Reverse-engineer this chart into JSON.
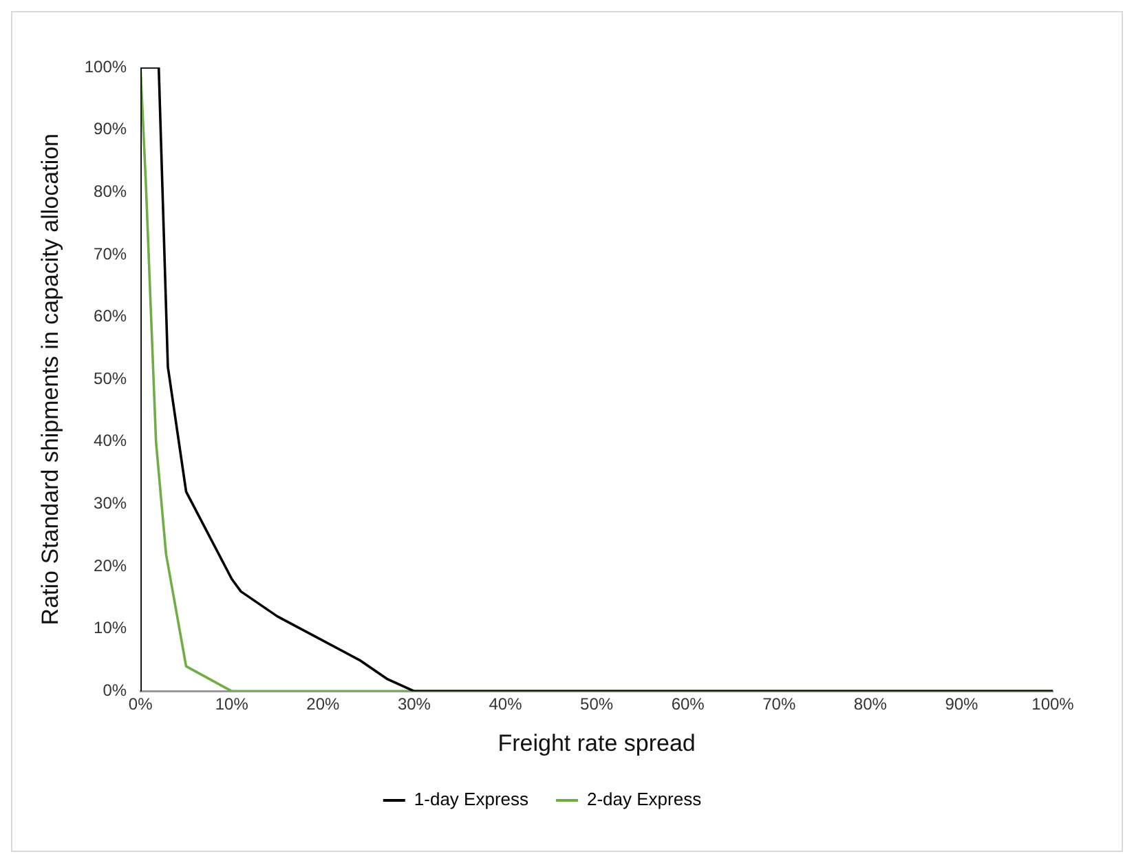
{
  "chart_data": {
    "type": "line",
    "xlabel": "Freight rate spread",
    "ylabel": "Ratio Standard shipments in capacity allocation",
    "xlim": [
      0,
      100
    ],
    "ylim": [
      0,
      100
    ],
    "xticks": [
      {
        "value": 0,
        "label": "0%"
      },
      {
        "value": 10,
        "label": "10%"
      },
      {
        "value": 20,
        "label": "20%"
      },
      {
        "value": 30,
        "label": "30%"
      },
      {
        "value": 40,
        "label": "40%"
      },
      {
        "value": 50,
        "label": "50%"
      },
      {
        "value": 60,
        "label": "60%"
      },
      {
        "value": 70,
        "label": "70%"
      },
      {
        "value": 80,
        "label": "80%"
      },
      {
        "value": 90,
        "label": "90%"
      },
      {
        "value": 100,
        "label": "100%"
      }
    ],
    "yticks": [
      {
        "value": 0,
        "label": "0%"
      },
      {
        "value": 10,
        "label": "10%"
      },
      {
        "value": 20,
        "label": "20%"
      },
      {
        "value": 30,
        "label": "30%"
      },
      {
        "value": 40,
        "label": "40%"
      },
      {
        "value": 50,
        "label": "50%"
      },
      {
        "value": 60,
        "label": "60%"
      },
      {
        "value": 70,
        "label": "70%"
      },
      {
        "value": 80,
        "label": "80%"
      },
      {
        "value": 90,
        "label": "90%"
      },
      {
        "value": 100,
        "label": "100%"
      }
    ],
    "grid": false,
    "legend": "bottom",
    "marker": "none",
    "line_style": "solid",
    "series": [
      {
        "name": "1-day Express",
        "color": "#000000",
        "x": [
          0,
          0,
          2,
          3,
          5,
          10,
          11,
          15,
          24,
          27,
          30,
          100
        ],
        "values": [
          0,
          100,
          100,
          52,
          32,
          18,
          16,
          12,
          5,
          2,
          0,
          0
        ]
      },
      {
        "name": "2-day Express",
        "color": "#70ad47",
        "x": [
          0,
          0.6,
          1.7,
          2.8,
          5,
          10,
          100
        ],
        "values": [
          100,
          81,
          40,
          22,
          4,
          0,
          0
        ]
      }
    ]
  }
}
